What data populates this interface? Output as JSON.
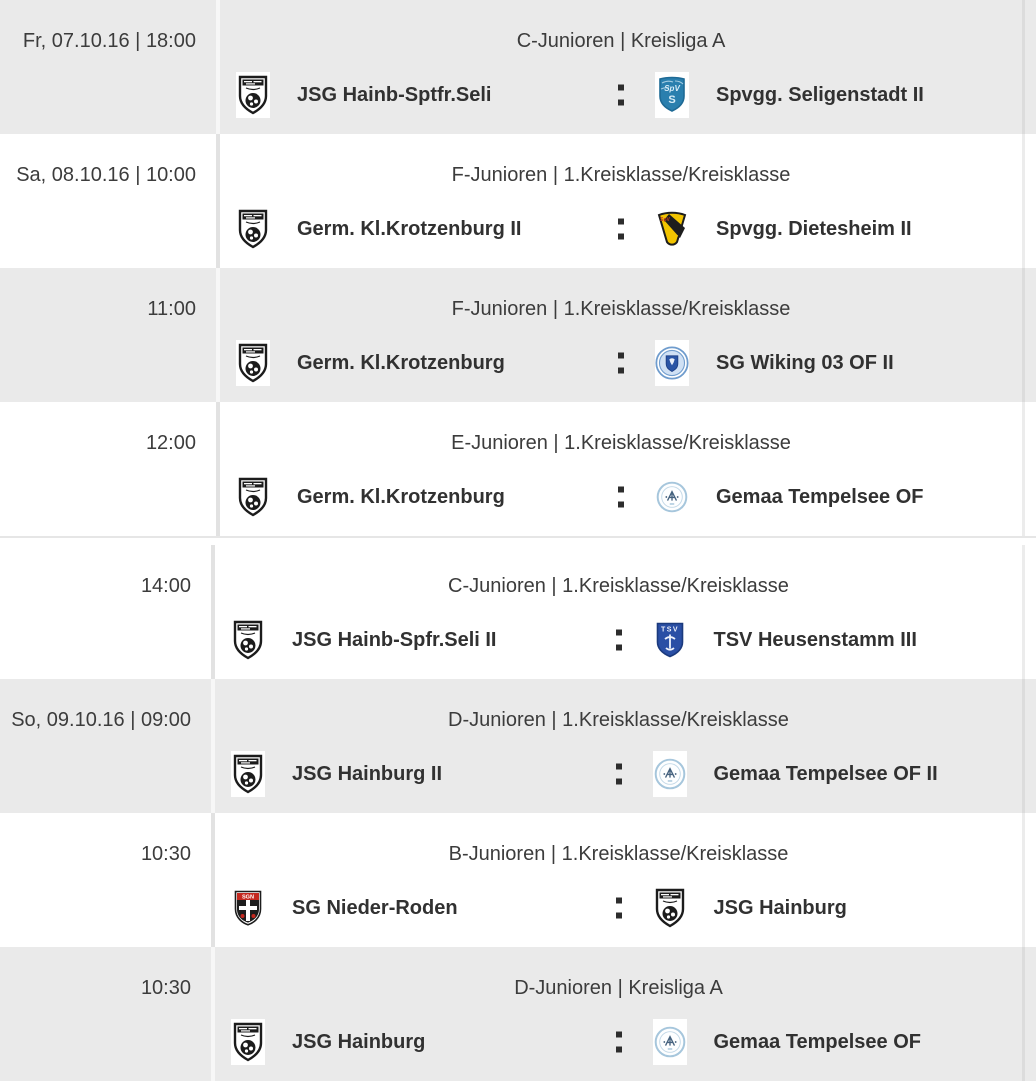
{
  "colors": {
    "row_gray": "#eaeaea",
    "row_white": "#ffffff",
    "date_text": "#3c3c3c",
    "competition_text": "#3c3c3c",
    "team_text": "#313131",
    "separator_dot": "#2d2d2d"
  },
  "separator_glyph": ":",
  "logos": {
    "bw_crest": {
      "label": "black-white-club-crest",
      "primary": "#1c1c1c",
      "secondary": "#ffffff"
    },
    "seligenstadt": {
      "label": "spvgg-seligenstadt-crest",
      "primary": "#2a7fae",
      "secondary": "#d8edf8",
      "border": "#1e6a95"
    },
    "dietesheim": {
      "label": "spvgg-dietesheim-crest",
      "primary": "#f2c400",
      "secondary": "#1d1d1d",
      "accent": "#c43a1e"
    },
    "wiking": {
      "label": "sg-wiking-crest",
      "primary": "#cfe0f4",
      "secondary": "#2a55a5",
      "ring": "#6f9ccd"
    },
    "tempelsee": {
      "label": "gemaa-tempelsee-crest",
      "primary": "#a6c6dc",
      "secondary": "#44617e"
    },
    "heusenstamm": {
      "label": "tsv-heusenstamm-crest",
      "primary": "#2a4fa5",
      "secondary": "#eef2fb",
      "border": "#1b3a7d"
    },
    "niederroden": {
      "label": "sg-nieder-roden-crest",
      "primary": "#c4281f",
      "secondary": "#1d1d1d"
    }
  },
  "tables": [
    {
      "rows": [
        {
          "shade": "gray",
          "datetime": "Fr, 07.10.16 | 18:00",
          "competition": "C-Junioren | Kreisliga A",
          "home": {
            "name": "JSG Hainb-Sptfr.Seli",
            "logo": "bw_crest"
          },
          "away": {
            "name": "Spvgg. Seligenstadt II",
            "logo": "seligenstadt"
          }
        },
        {
          "shade": "white",
          "datetime": "Sa, 08.10.16 | 10:00",
          "competition": "F-Junioren | 1.Kreisklasse/Kreisklasse",
          "home": {
            "name": "Germ. Kl.Krotzenburg II",
            "logo": "bw_crest"
          },
          "away": {
            "name": "Spvgg. Dietesheim II",
            "logo": "dietesheim"
          }
        },
        {
          "shade": "gray",
          "datetime": "11:00",
          "competition": "F-Junioren | 1.Kreisklasse/Kreisklasse",
          "home": {
            "name": "Germ. Kl.Krotzenburg",
            "logo": "bw_crest"
          },
          "away": {
            "name": "SG Wiking 03 OF II",
            "logo": "wiking"
          }
        },
        {
          "shade": "white",
          "datetime": "12:00",
          "competition": "E-Junioren | 1.Kreisklasse/Kreisklasse",
          "home": {
            "name": "Germ. Kl.Krotzenburg",
            "logo": "bw_crest"
          },
          "away": {
            "name": "Gemaa Tempelsee OF",
            "logo": "tempelsee"
          }
        }
      ]
    },
    {
      "rows": [
        {
          "shade": "white",
          "datetime": "14:00",
          "competition": "C-Junioren | 1.Kreisklasse/Kreisklasse",
          "home": {
            "name": "JSG Hainb-Spfr.Seli II",
            "logo": "bw_crest"
          },
          "away": {
            "name": "TSV Heusenstamm III",
            "logo": "heusenstamm"
          }
        },
        {
          "shade": "gray",
          "datetime": "So, 09.10.16 | 09:00",
          "competition": "D-Junioren | 1.Kreisklasse/Kreisklasse",
          "home": {
            "name": "JSG Hainburg II",
            "logo": "bw_crest"
          },
          "away": {
            "name": "Gemaa Tempelsee OF II",
            "logo": "tempelsee"
          }
        },
        {
          "shade": "white",
          "datetime": "10:30",
          "competition": "B-Junioren | 1.Kreisklasse/Kreisklasse",
          "home": {
            "name": "SG Nieder-Roden",
            "logo": "niederroden"
          },
          "away": {
            "name": "JSG Hainburg",
            "logo": "bw_crest"
          }
        },
        {
          "shade": "gray",
          "datetime": "10:30",
          "competition": "D-Junioren | Kreisliga A",
          "home": {
            "name": "JSG Hainburg",
            "logo": "bw_crest"
          },
          "away": {
            "name": "Gemaa Tempelsee OF",
            "logo": "tempelsee"
          }
        }
      ]
    }
  ]
}
